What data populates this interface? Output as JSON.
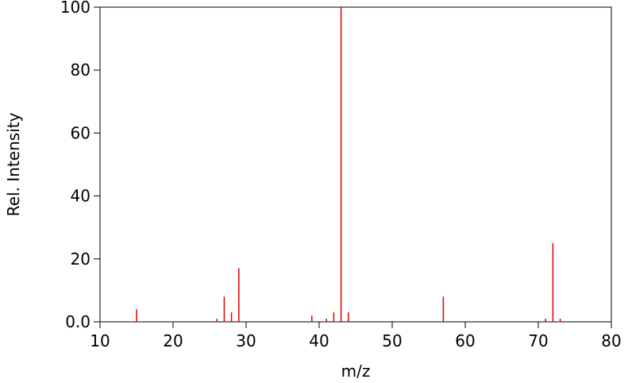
{
  "chart_data": {
    "type": "stem",
    "x_label": "m/z",
    "y_label": "Rel. Intensity",
    "x": [
      15,
      26,
      27,
      28,
      29,
      39,
      41,
      42,
      43,
      44,
      57,
      71,
      72,
      73
    ],
    "values": [
      4,
      1,
      8,
      3,
      17,
      2,
      1,
      3,
      100,
      3,
      8,
      1,
      25,
      1
    ],
    "color": "#e00000",
    "xlim": [
      10,
      80
    ],
    "xticks": [
      10,
      20,
      30,
      40,
      50,
      60,
      70,
      80
    ],
    "ylim": [
      0,
      100
    ],
    "yticks": [
      {
        "value": 0,
        "label": "0.0"
      },
      20,
      40,
      60,
      80,
      100
    ],
    "grid": false
  }
}
